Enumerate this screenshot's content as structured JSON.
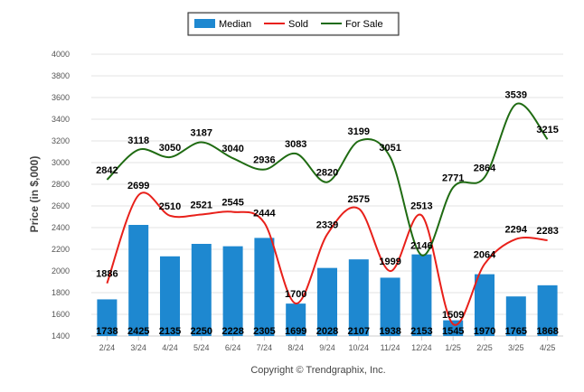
{
  "chart_data": {
    "type": "bar",
    "title": "",
    "xlabel": "",
    "ylabel": "Price (in $,000)",
    "ylim": [
      1400,
      4000
    ],
    "yticks": [
      1400,
      1600,
      1800,
      2000,
      2200,
      2400,
      2600,
      2800,
      3000,
      3200,
      3400,
      3600,
      3800,
      4000
    ],
    "grid": true,
    "legend_position": "top-center",
    "categories": [
      "2/24",
      "3/24",
      "4/24",
      "5/24",
      "6/24",
      "7/24",
      "8/24",
      "9/24",
      "10/24",
      "11/24",
      "12/24",
      "1/25",
      "2/25",
      "3/25",
      "4/25"
    ],
    "series": [
      {
        "name": "Median",
        "type": "bar",
        "color": "#1e88d0",
        "values": [
          1738,
          2425,
          2135,
          2250,
          2228,
          2305,
          1699,
          2028,
          2107,
          1938,
          2153,
          1545,
          1970,
          1765,
          1868
        ]
      },
      {
        "name": "Sold",
        "type": "line",
        "color": "#e8201a",
        "values": [
          1886,
          2699,
          2510,
          2521,
          2545,
          2444,
          1700,
          2339,
          2575,
          1999,
          2513,
          1509,
          2064,
          2294,
          2283
        ]
      },
      {
        "name": "For Sale",
        "type": "line",
        "color": "#1f6b12",
        "values": [
          2842,
          3118,
          3050,
          3187,
          3040,
          2936,
          3083,
          2820,
          3199,
          3051,
          2146,
          2771,
          2864,
          3539,
          3215
        ]
      }
    ],
    "footer": "Copyright © Trendgraphix, Inc."
  }
}
